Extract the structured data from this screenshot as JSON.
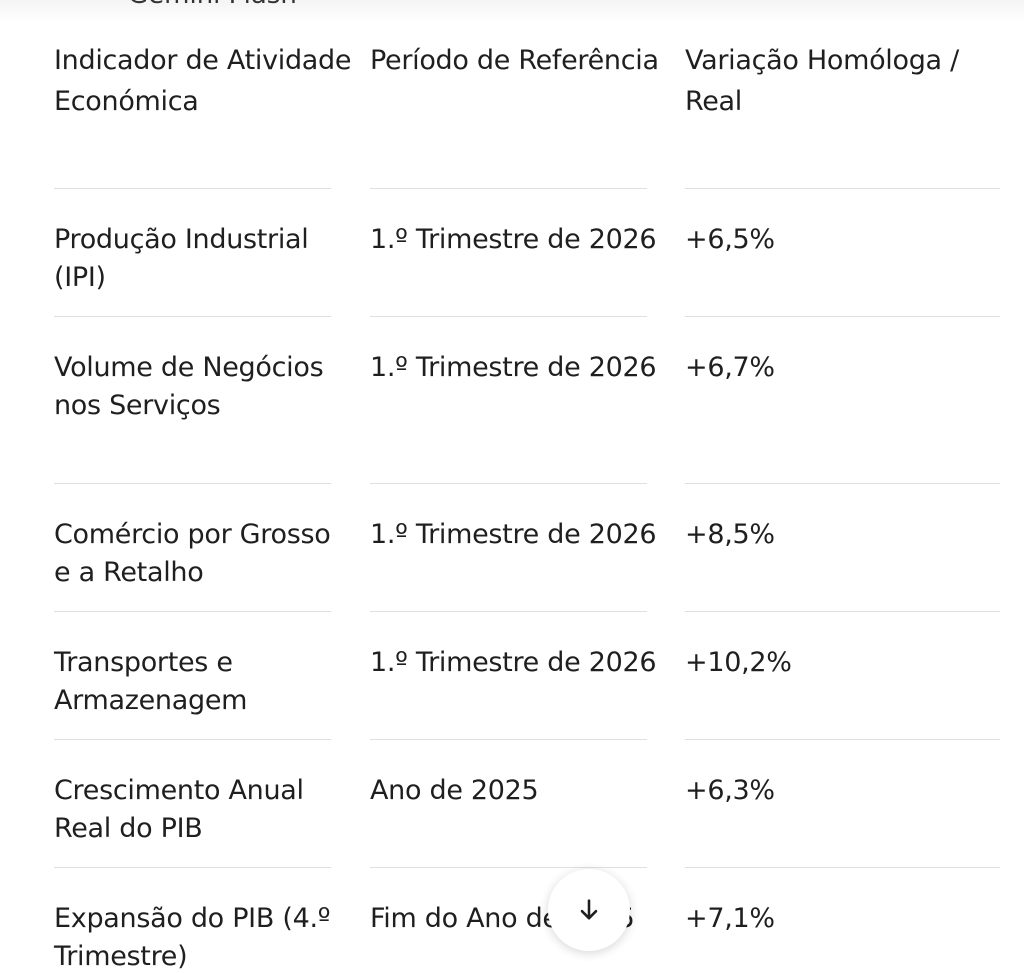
{
  "table": {
    "headers": [
      "Indicador de Atividade Económica",
      "Período de Referência",
      "Variação Homóloga / Real"
    ],
    "rows": [
      [
        "Produção Industrial (IPI)",
        "1.º Trimestre de 2026",
        "+6,5%"
      ],
      [
        "Volume de Negócios nos Serviços",
        "1.º Trimestre de 2026",
        "+6,7%"
      ],
      [
        "Comércio por Grosso e a Retalho",
        "1.º Trimestre de 2026",
        "+8,5%"
      ],
      [
        "Transportes e Armazenagem",
        "1.º Trimestre de 2026",
        "+10,2%"
      ],
      [
        "Crescimento Anual Real do PIB",
        "Ano de 2025",
        "+6,3%"
      ],
      [
        "Expansão do PIB (4.º Trimestre)",
        "Fim do Ano de 2025",
        "+7,1%"
      ]
    ]
  },
  "cut_label": "Gemini Flash",
  "scroll_button": {
    "icon": "arrow-down-icon"
  }
}
